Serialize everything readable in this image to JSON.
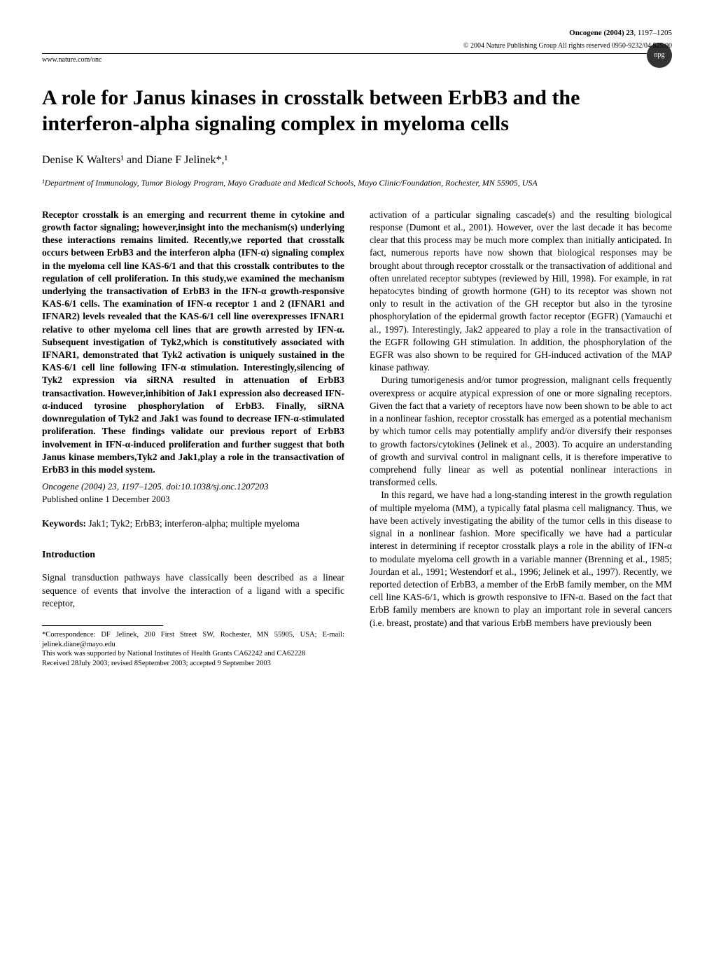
{
  "header": {
    "journal": "Oncogene (2004) 23",
    "pages": "1197–1205",
    "copyright": "© 2004 Nature Publishing Group  All rights reserved 0950-9232/04 $25.00",
    "url": "www.nature.com/onc",
    "badge": "npg"
  },
  "title": "A role for Janus kinases in crosstalk between ErbB3 and the interferon-alpha signaling complex in myeloma cells",
  "authors": "Denise K Walters¹ and Diane F Jelinek*,¹",
  "affiliation": "¹Department of Immunology, Tumor Biology Program, Mayo Graduate and Medical Schools, Mayo Clinic/Foundation, Rochester, MN 55905, USA",
  "abstract": "Receptor crosstalk is an emerging and recurrent theme in cytokine and growth factor signaling; however,insight into the mechanism(s) underlying these interactions remains limited. Recently,we reported that crosstalk occurs between ErbB3 and the interferon alpha (IFN-α) signaling complex in the myeloma cell line KAS-6/1 and that this crosstalk contributes to the regulation of cell proliferation. In this study,we examined the mechanism underlying the transactivation of ErbB3 in the IFN-α growth-responsive KAS-6/1 cells. The examination of IFN-α receptor 1 and 2 (IFNAR1 and IFNAR2) levels revealed that the KAS-6/1 cell line overexpresses IFNAR1 relative to other myeloma cell lines that are growth arrested by IFN-α. Subsequent investigation of Tyk2,which is constitutively associated with IFNAR1, demonstrated that Tyk2 activation is uniquely sustained in the KAS-6/1 cell line following IFN-α stimulation. Interestingly,silencing of Tyk2 expression via siRNA resulted in attenuation of ErbB3 transactivation. However,inhibition of Jak1 expression also decreased IFN- α-induced tyrosine phosphorylation of ErbB3. Finally, siRNA downregulation of Tyk2 and Jak1 was found to decrease IFN-α-stimulated proliferation. These findings validate our previous report of ErbB3 involvement in IFN-α-induced proliferation and further suggest that both Janus kinase members,Tyk2 and Jak1,play a role in the transactivation of ErbB3 in this model system.",
  "citation_line": "Oncogene (2004) 23, 1197–1205. doi:10.1038/sj.onc.1207203",
  "published": "Published online 1 December 2003",
  "keywords_label": "Keywords:",
  "keywords": "Jak1; Tyk2; ErbB3; interferon-alpha; multiple myeloma",
  "section_intro": "Introduction",
  "intro_left": "Signal transduction pathways have classically been described as a linear sequence of events that involve the interaction of a ligand with a specific receptor,",
  "right_p1": "activation of a particular signaling cascade(s) and the resulting biological response (Dumont et al., 2001). However, over the last decade it has become clear that this process may be much more complex than initially anticipated. In fact, numerous reports have now shown that biological responses may be brought about through receptor crosstalk or the transactivation of additional and often unrelated receptor subtypes (reviewed by Hill, 1998). For example, in rat hepatocytes binding of growth hormone (GH) to its receptor was shown not only to result in the activation of the GH receptor but also in the tyrosine phosphorylation of the epidermal growth factor receptor (EGFR) (Yamauchi et al., 1997). Interestingly, Jak2 appeared to play a role in the transactivation of the EGFR following GH stimulation. In addition, the phosphorylation of the EGFR was also shown to be required for GH-induced activation of the MAP kinase pathway.",
  "right_p2": "During tumorigenesis and/or tumor progression, malignant cells frequently overexpress or acquire atypical expression of one or more signaling receptors. Given the fact that a variety of receptors have now been shown to be able to act in a nonlinear fashion, receptor crosstalk has emerged as a potential mechanism by which tumor cells may potentially amplify and/or diversify their responses to growth factors/cytokines (Jelinek et al., 2003). To acquire an understanding of growth and survival control in malignant cells, it is therefore imperative to comprehend fully linear as well as potential nonlinear interactions in transformed cells.",
  "right_p3": "In this regard, we have had a long-standing interest in the growth regulation of multiple myeloma (MM), a typically fatal plasma cell malignancy. Thus, we have been actively investigating the ability of the tumor cells in this disease to signal in a nonlinear fashion. More specifically we have had a particular interest in determining if receptor crosstalk plays a role in the ability of IFN-α to modulate myeloma cell growth in a variable manner (Brenning et al., 1985; Jourdan et al., 1991; Westendorf et al., 1996; Jelinek et al., 1997). Recently, we reported detection of ErbB3, a member of the ErbB family member, on the MM cell line KAS-6/1, which is growth responsive to IFN-α. Based on the fact that ErbB family members are known to play an important role in several cancers (i.e. breast, prostate) and that various ErbB members have previously been",
  "footnotes": {
    "correspondence": "*Correspondence: DF Jelinek, 200 First Street SW, Rochester, MN 55905, USA; E-mail: jelinek.diane@mayo.edu",
    "support": "This work was supported by National Institutes of Health Grants CA62242 and CA62228",
    "received": "Received 28July 2003; revised 8September 2003; accepted 9 September 2003"
  }
}
